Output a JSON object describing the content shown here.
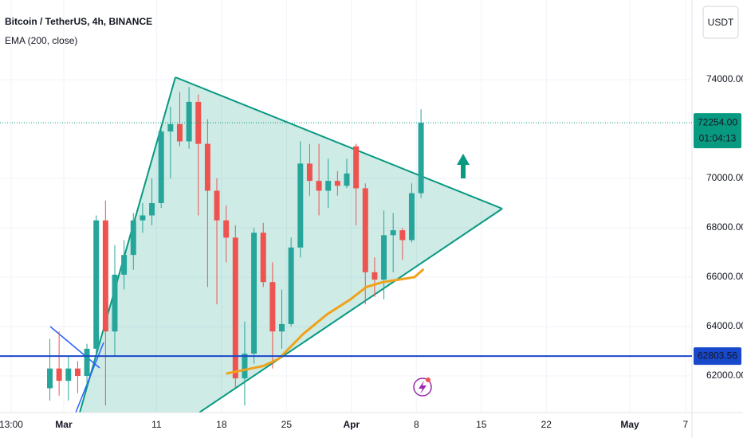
{
  "chart_data": {
    "type": "candlestick",
    "title": "Bitcoin / TetherUS, 4h, BINANCE",
    "currency": "USDT",
    "x": [
      -2,
      -1,
      0,
      1,
      2,
      3,
      4,
      5,
      6,
      7,
      8,
      9,
      10,
      11,
      12,
      13,
      14,
      15,
      16,
      17,
      18,
      19,
      20,
      21,
      22,
      23,
      24,
      25,
      26,
      27,
      28,
      29,
      30,
      31,
      32,
      33,
      34,
      35,
      36,
      37,
      38
    ],
    "open": [
      61500,
      62300,
      61800,
      62300,
      62000,
      63100,
      68300,
      63800,
      66100,
      66900,
      68300,
      68500,
      69000,
      71900,
      72200,
      71500,
      73100,
      71400,
      69500,
      68300,
      67600,
      61900,
      62900,
      67800,
      65800,
      63800,
      64100,
      67200,
      70600,
      69900,
      69500,
      69900,
      69700,
      71300,
      69600,
      66200,
      65900,
      67700,
      67900,
      67500,
      69400
    ],
    "high": [
      63500,
      63800,
      62800,
      62600,
      63300,
      68500,
      69100,
      67300,
      67500,
      68600,
      69000,
      70000,
      72000,
      72900,
      73500,
      73700,
      73400,
      72400,
      70000,
      68900,
      68100,
      64200,
      68000,
      68200,
      66600,
      65500,
      67600,
      71500,
      71400,
      71400,
      70800,
      70300,
      70800,
      71400,
      69800,
      66800,
      68700,
      68600,
      68000,
      69800,
      72800
    ],
    "low": [
      61000,
      61200,
      61000,
      61300,
      61600,
      62800,
      60800,
      62800,
      65500,
      66300,
      67800,
      68100,
      68800,
      70000,
      71300,
      71200,
      68500,
      65600,
      64900,
      66600,
      61500,
      60800,
      62500,
      65600,
      62300,
      63100,
      64000,
      66800,
      69300,
      68500,
      68800,
      69300,
      69600,
      68100,
      64900,
      65200,
      65100,
      66200,
      66700,
      67400,
      69200
    ],
    "close": [
      62300,
      61800,
      62300,
      62000,
      63100,
      68300,
      63800,
      66100,
      66900,
      68300,
      68500,
      69000,
      71900,
      72200,
      71500,
      73100,
      71400,
      69500,
      68300,
      67600,
      61900,
      62900,
      67800,
      65800,
      63800,
      64100,
      67200,
      70600,
      69900,
      69500,
      69900,
      69700,
      70200,
      69600,
      66200,
      65900,
      67700,
      67900,
      67500,
      69400,
      72254
    ],
    "up_color": "#26a69a",
    "down_color": "#ef5350",
    "ema": {
      "name": "EMA (200, close)",
      "color": "#f0a21a",
      "x": [
        17.6,
        18.9,
        21.5,
        23.2,
        25.8,
        28.4,
        30.9,
        32.6,
        34.4,
        36.1,
        37.8,
        38.7
      ],
      "values": [
        62100,
        62200,
        62400,
        62700,
        63700,
        64500,
        65100,
        65600,
        65800,
        65900,
        66000,
        66300
      ]
    },
    "level": {
      "value": 62803.56,
      "label": "62803.56",
      "color": "#1848cc"
    },
    "last": {
      "value": 72254,
      "label": "72254.00",
      "countdown": "01:04:13",
      "color": "#089981"
    },
    "xlim": [
      -6.87,
      67.7
    ],
    "ylim": [
      60516,
      77226
    ],
    "xticks": [
      {
        "value": -5.67,
        "label": "13:00"
      },
      {
        "value": 0,
        "label": "Mar"
      },
      {
        "value": 10,
        "label": "11"
      },
      {
        "value": 17,
        "label": "18"
      },
      {
        "value": 24,
        "label": "25"
      },
      {
        "value": 31,
        "label": "Apr"
      },
      {
        "value": 38,
        "label": "8"
      },
      {
        "value": 45,
        "label": "15"
      },
      {
        "value": 52,
        "label": "22"
      },
      {
        "value": 61,
        "label": "May"
      },
      {
        "value": 67,
        "label": "7"
      }
    ],
    "yticks": [
      {
        "value": 62000,
        "label": "62000.00"
      },
      {
        "value": 64000,
        "label": "64000.00"
      },
      {
        "value": 66000,
        "label": "66000.00"
      },
      {
        "value": 68000,
        "label": "68000.00"
      },
      {
        "value": 70000,
        "label": "70000.00"
      },
      {
        "value": 74000,
        "label": "74000.00"
      }
    ],
    "grid": true
  }
}
